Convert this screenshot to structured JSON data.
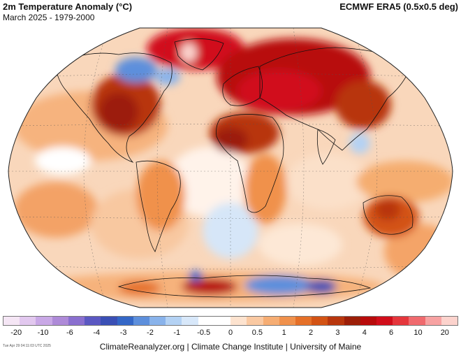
{
  "header": {
    "title": "2m Temperature Anomaly (°C)",
    "period": "March 2025 - 1979-2000",
    "dataset": "ECMWF ERA5 (0.5x0.5 deg)"
  },
  "legend": {
    "labels": [
      "-20",
      "-10",
      "-6",
      "-4",
      "-3",
      "-2",
      "-1",
      "-0.5",
      "0",
      "0.5",
      "1",
      "2",
      "3",
      "4",
      "6",
      "10",
      "20"
    ],
    "colors": [
      "#f5e6f5",
      "#e2c8ef",
      "#c9a8e6",
      "#ae8ad8",
      "#8a6fcf",
      "#5b58c2",
      "#3a4fb5",
      "#3467c7",
      "#5d8fdc",
      "#89b3eb",
      "#b4d2f4",
      "#d8e8fa",
      "#ffffff",
      "#ffffff",
      "#fde3cf",
      "#fac9a2",
      "#f6ad73",
      "#f0914c",
      "#e57028",
      "#d35314",
      "#b8360d",
      "#9c1e08",
      "#b80b0b",
      "#d10d1a",
      "#e5363c",
      "#f06a6e",
      "#f7a2a2",
      "#fcd3cd"
    ]
  },
  "footer": {
    "timestamp": "Tue Apr 29 04:11:03 UTC 2025",
    "credits": "ClimateReanalyzer.org | Climate Change Institute | University of Maine"
  }
}
